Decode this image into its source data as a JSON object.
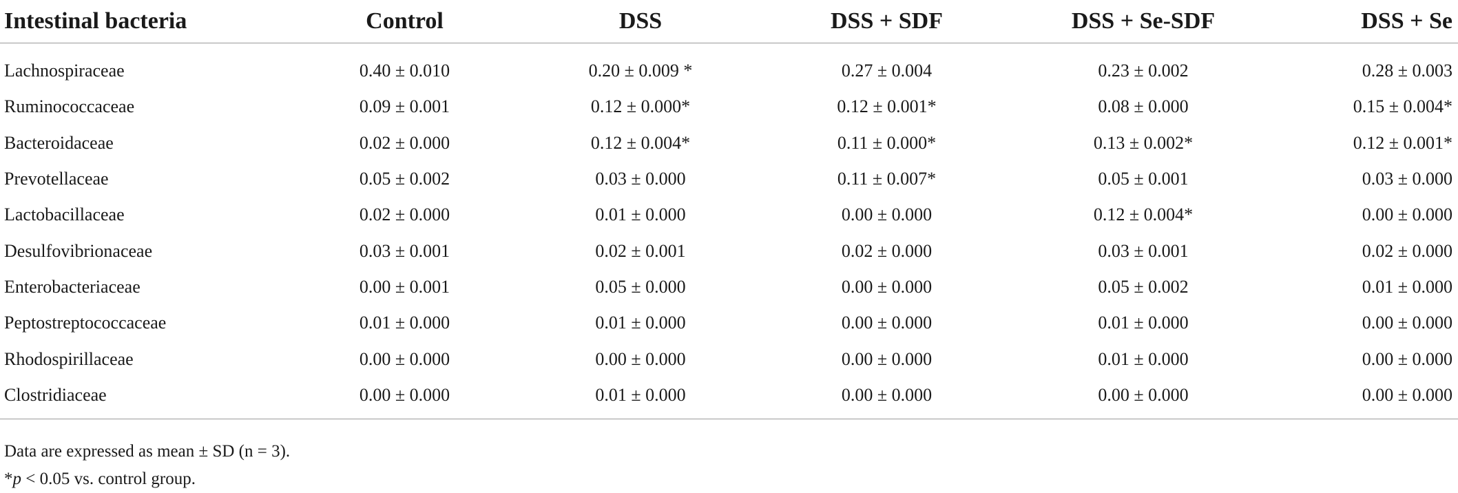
{
  "table": {
    "columns": [
      "Intestinal bacteria",
      "Control",
      "DSS",
      "DSS + SDF",
      "DSS + Se-SDF",
      "DSS + Se"
    ],
    "rows": [
      [
        "Lachnospiraceae",
        "0.40 ± 0.010",
        "0.20 ± 0.009 *",
        "0.27 ± 0.004",
        "0.23 ± 0.002",
        "0.28 ± 0.003"
      ],
      [
        "Ruminococcaceae",
        "0.09 ± 0.001",
        "0.12 ± 0.000*",
        "0.12 ± 0.001*",
        "0.08 ± 0.000",
        "0.15 ± 0.004*"
      ],
      [
        "Bacteroidaceae",
        "0.02 ± 0.000",
        "0.12 ± 0.004*",
        "0.11 ± 0.000*",
        "0.13 ± 0.002*",
        "0.12 ± 0.001*"
      ],
      [
        "Prevotellaceae",
        "0.05 ± 0.002",
        "0.03 ± 0.000",
        "0.11 ± 0.007*",
        "0.05 ± 0.001",
        "0.03 ± 0.000"
      ],
      [
        "Lactobacillaceae",
        "0.02 ± 0.000",
        "0.01 ± 0.000",
        "0.00 ± 0.000",
        "0.12 ± 0.004*",
        "0.00 ± 0.000"
      ],
      [
        "Desulfovibrionaceae",
        "0.03 ± 0.001",
        "0.02 ± 0.001",
        "0.02 ± 0.000",
        "0.03 ± 0.001",
        "0.02 ± 0.000"
      ],
      [
        "Enterobacteriaceae",
        "0.00 ± 0.001",
        "0.05 ± 0.000",
        "0.00 ± 0.000",
        "0.05 ± 0.002",
        "0.01 ± 0.000"
      ],
      [
        "Peptostreptococcaceae",
        "0.01 ± 0.000",
        "0.01 ± 0.000",
        "0.00 ± 0.000",
        "0.01 ± 0.000",
        "0.00 ± 0.000"
      ],
      [
        "Rhodospirillaceae",
        "0.00 ± 0.000",
        "0.00 ± 0.000",
        "0.00 ± 0.000",
        "0.01 ± 0.000",
        "0.00 ± 0.000"
      ],
      [
        "Clostridiaceae",
        "0.00 ± 0.000",
        "0.01 ± 0.000",
        "0.00 ± 0.000",
        "0.00 ± 0.000",
        "0.00 ± 0.000"
      ]
    ]
  },
  "footnotes": {
    "note1": "Data are expressed as mean ± SD (n = 3).",
    "note2_prefix": "*",
    "note2_p": "p",
    "note2_rest": " < 0.05 vs. control group."
  }
}
